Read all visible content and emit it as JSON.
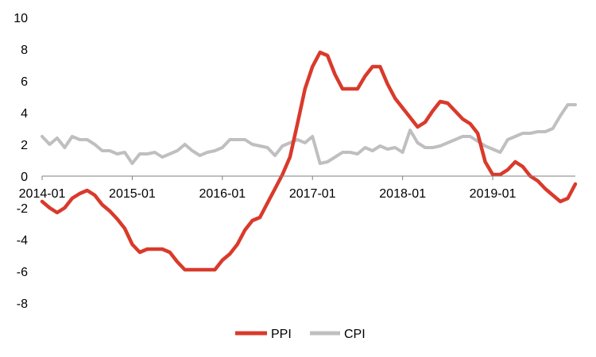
{
  "chart_data": {
    "type": "line",
    "title": "",
    "xlabel": "",
    "ylabel": "",
    "ylim": [
      -8,
      10
    ],
    "yticks": [
      10,
      8,
      6,
      4,
      2,
      0,
      -2,
      -4,
      -6,
      -8
    ],
    "xlim": [
      "2014-01",
      "2019-12"
    ],
    "xticks": [
      "2014-01",
      "2015-01",
      "2016-01",
      "2017-01",
      "2018-01",
      "2019-01"
    ],
    "grid": false,
    "legend_position": "bottom",
    "x": [
      "2014-01",
      "2014-02",
      "2014-03",
      "2014-04",
      "2014-05",
      "2014-06",
      "2014-07",
      "2014-08",
      "2014-09",
      "2014-10",
      "2014-11",
      "2014-12",
      "2015-01",
      "2015-02",
      "2015-03",
      "2015-04",
      "2015-05",
      "2015-06",
      "2015-07",
      "2015-08",
      "2015-09",
      "2015-10",
      "2015-11",
      "2015-12",
      "2016-01",
      "2016-02",
      "2016-03",
      "2016-04",
      "2016-05",
      "2016-06",
      "2016-07",
      "2016-08",
      "2016-09",
      "2016-10",
      "2016-11",
      "2016-12",
      "2017-01",
      "2017-02",
      "2017-03",
      "2017-04",
      "2017-05",
      "2017-06",
      "2017-07",
      "2017-08",
      "2017-09",
      "2017-10",
      "2017-11",
      "2017-12",
      "2018-01",
      "2018-02",
      "2018-03",
      "2018-04",
      "2018-05",
      "2018-06",
      "2018-07",
      "2018-08",
      "2018-09",
      "2018-10",
      "2018-11",
      "2018-12",
      "2019-01",
      "2019-02",
      "2019-03",
      "2019-04",
      "2019-05",
      "2019-06",
      "2019-07",
      "2019-08",
      "2019-09",
      "2019-10",
      "2019-11",
      "2019-12"
    ],
    "series": [
      {
        "name": "PPI",
        "color": "#d93a2b",
        "values": [
          -1.6,
          -2.0,
          -2.3,
          -2.0,
          -1.4,
          -1.1,
          -0.9,
          -1.2,
          -1.8,
          -2.2,
          -2.7,
          -3.3,
          -4.3,
          -4.8,
          -4.6,
          -4.6,
          -4.6,
          -4.8,
          -5.4,
          -5.9,
          -5.9,
          -5.9,
          -5.9,
          -5.9,
          -5.3,
          -4.9,
          -4.3,
          -3.4,
          -2.8,
          -2.6,
          -1.7,
          -0.8,
          0.1,
          1.2,
          3.3,
          5.5,
          6.9,
          7.8,
          7.6,
          6.4,
          5.5,
          5.5,
          5.5,
          6.3,
          6.9,
          6.9,
          5.8,
          4.9,
          4.3,
          3.7,
          3.1,
          3.4,
          4.1,
          4.7,
          4.6,
          4.1,
          3.6,
          3.3,
          2.7,
          0.9,
          0.1,
          0.1,
          0.4,
          0.9,
          0.6,
          0.0,
          -0.3,
          -0.8,
          -1.2,
          -1.6,
          -1.4,
          -0.5
        ]
      },
      {
        "name": "CPI",
        "color": "#bfbfbf",
        "values": [
          2.5,
          2.0,
          2.4,
          1.8,
          2.5,
          2.3,
          2.3,
          2.0,
          1.6,
          1.6,
          1.4,
          1.5,
          0.8,
          1.4,
          1.4,
          1.5,
          1.2,
          1.4,
          1.6,
          2.0,
          1.6,
          1.3,
          1.5,
          1.6,
          1.8,
          2.3,
          2.3,
          2.3,
          2.0,
          1.9,
          1.8,
          1.3,
          1.9,
          2.1,
          2.3,
          2.1,
          2.5,
          0.8,
          0.9,
          1.2,
          1.5,
          1.5,
          1.4,
          1.8,
          1.6,
          1.9,
          1.7,
          1.8,
          1.5,
          2.9,
          2.1,
          1.8,
          1.8,
          1.9,
          2.1,
          2.3,
          2.5,
          2.5,
          2.2,
          1.9,
          1.7,
          1.5,
          2.3,
          2.5,
          2.7,
          2.7,
          2.8,
          2.8,
          3.0,
          3.8,
          4.5,
          4.5
        ]
      }
    ]
  }
}
